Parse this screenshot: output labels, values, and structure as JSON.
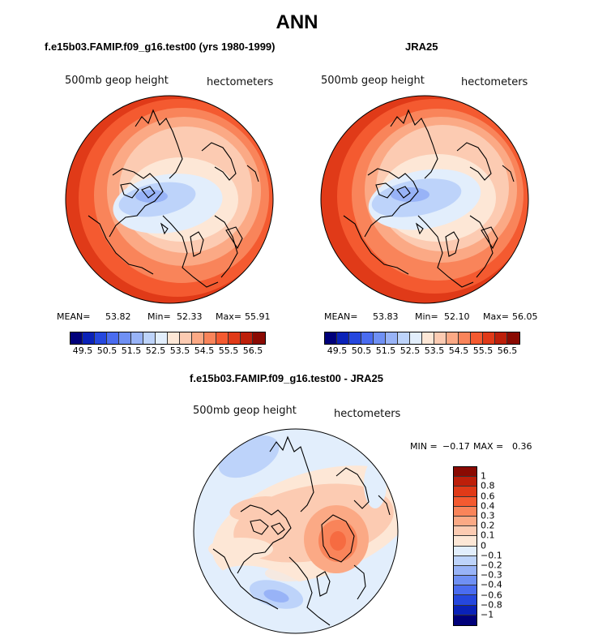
{
  "main_title": "ANN",
  "panels": [
    {
      "title": "f.e15b03.FAMIP.f09_g16.test00 (yrs 1980-1999)",
      "var_label": "500mb geop height",
      "units_label": "hectometers",
      "stats": {
        "mean_label": "MEAN=",
        "mean": "53.82",
        "min_label": "Min=",
        "min": "52.33",
        "max_label": "Max=",
        "max": "55.91"
      }
    },
    {
      "title": "JRA25",
      "var_label": "500mb geop height",
      "units_label": "hectometers",
      "stats": {
        "mean_label": "MEAN=",
        "mean": "53.83",
        "min_label": "Min=",
        "min": "52.10",
        "max_label": "Max=",
        "max": "56.05"
      }
    }
  ],
  "diff_panel": {
    "title": "f.e15b03.FAMIP.f09_g16.test00 - JRA25",
    "var_label": "500mb geop height",
    "units_label": "hectometers",
    "min_label": "MIN =",
    "min": "−0.17",
    "max_label": "MAX =",
    "max": "0.36"
  },
  "colorbar": {
    "colors": [
      "#00007a",
      "#0a22b8",
      "#2547de",
      "#4a6cf0",
      "#6f90f4",
      "#98b3f7",
      "#bdd3fa",
      "#e2eefc",
      "#fde7d6",
      "#fccbb2",
      "#fba985",
      "#f9845a",
      "#f45a30",
      "#e03a18",
      "#bd1f0a",
      "#8a0a02"
    ],
    "tick_labels": [
      "49.5",
      "50.5",
      "51.5",
      "52.5",
      "53.5",
      "54.5",
      "55.5",
      "56.5"
    ]
  },
  "diff_colorbar": {
    "colors": [
      "#8a0a02",
      "#bd1f0a",
      "#e03a18",
      "#f45a30",
      "#f9845a",
      "#fba985",
      "#fccbb2",
      "#fde7d6",
      "#e2eefc",
      "#bdd3fa",
      "#98b3f7",
      "#6f90f4",
      "#4a6cf0",
      "#2547de",
      "#0a22b8",
      "#00007a"
    ],
    "tick_labels": [
      "1",
      "0.8",
      "0.6",
      "0.4",
      "0.3",
      "0.2",
      "0.1",
      "0",
      "−0.1",
      "−0.2",
      "−0.3",
      "−0.4",
      "−0.6",
      "−0.8",
      "−1"
    ]
  }
}
